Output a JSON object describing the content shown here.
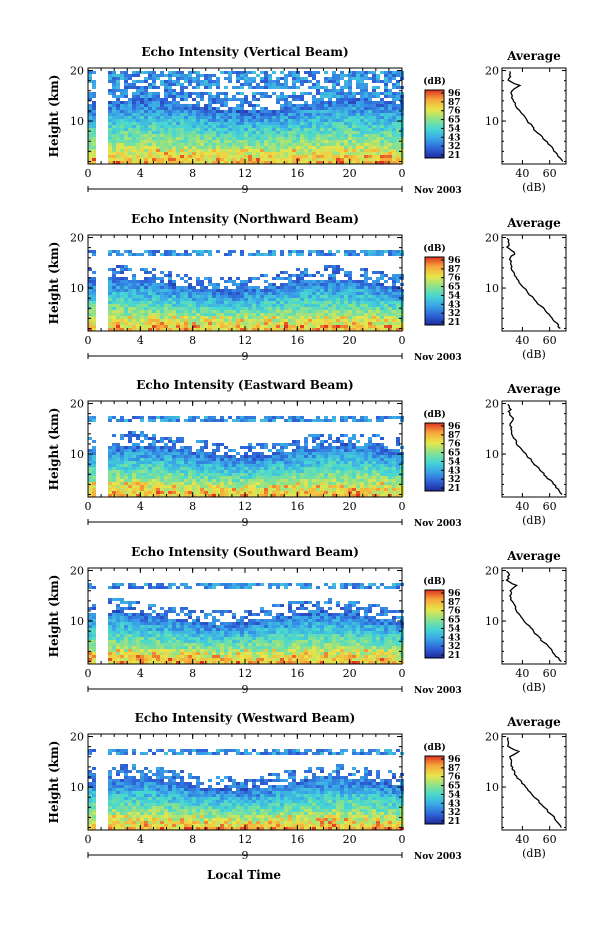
{
  "colorbar": {
    "unit": "(dB)",
    "tick_labels": [
      "96",
      "87",
      "76",
      "65",
      "54",
      "43",
      "32",
      "21"
    ],
    "colors": [
      "#1e2a9a",
      "#2f63d8",
      "#3aa8e8",
      "#48d8d0",
      "#8ee28a",
      "#e8e64a",
      "#f6a63a",
      "#e03222"
    ]
  },
  "xlabel": "Local Time",
  "date_label": "Nov 2003",
  "day_label": "9",
  "avg_title": "Average",
  "avg_xlabel": "(dB)",
  "avg_xticks": [
    "40",
    "60"
  ],
  "chart_data": [
    {
      "type": "heatmap",
      "title": "Echo Intensity (Vertical Beam)",
      "ylabel": "Height (km)",
      "x_ticks": [
        "0",
        "4",
        "8",
        "12",
        "16",
        "20",
        "0"
      ],
      "y_ticks": [
        "20",
        "10"
      ],
      "ylim": [
        1.5,
        20.5
      ],
      "avg_profile": {
        "xlabel": "(dB)",
        "xticks": [
          "40",
          "60"
        ],
        "yticks": [
          "20",
          "10"
        ],
        "height_km": [
          2,
          4,
          6,
          8,
          10,
          12,
          14,
          16,
          17,
          18,
          19,
          20
        ],
        "db": [
          70,
          64,
          57,
          50,
          44,
          38,
          33,
          32,
          38,
          29,
          31,
          30
        ]
      }
    },
    {
      "type": "heatmap",
      "title": "Echo Intensity (Northward Beam)",
      "ylabel": "Height (km)",
      "x_ticks": [
        "0",
        "4",
        "8",
        "12",
        "16",
        "20",
        "0"
      ],
      "y_ticks": [
        "20",
        "10"
      ],
      "ylim": [
        1.5,
        20.5
      ],
      "avg_profile": {
        "xlabel": "(dB)",
        "xticks": [
          "40",
          "60"
        ],
        "yticks": [
          "20",
          "10"
        ],
        "height_km": [
          2,
          4,
          6,
          8,
          10,
          12,
          14,
          16,
          17,
          18,
          19,
          20
        ],
        "db": [
          68,
          62,
          55,
          48,
          41,
          36,
          32,
          31,
          35,
          29,
          30,
          29
        ]
      }
    },
    {
      "type": "heatmap",
      "title": "Echo Intensity (Eastward Beam)",
      "ylabel": "Height (km)",
      "x_ticks": [
        "0",
        "4",
        "8",
        "12",
        "16",
        "20",
        "0"
      ],
      "y_ticks": [
        "20",
        "10"
      ],
      "ylim": [
        1.5,
        20.5
      ],
      "avg_profile": {
        "xlabel": "(dB)",
        "xticks": [
          "40",
          "60"
        ],
        "yticks": [
          "20",
          "10"
        ],
        "height_km": [
          2,
          4,
          6,
          8,
          10,
          12,
          14,
          16,
          17,
          18,
          19,
          20
        ],
        "db": [
          69,
          63,
          56,
          49,
          42,
          36,
          32,
          31,
          34,
          30,
          31,
          29
        ]
      }
    },
    {
      "type": "heatmap",
      "title": "Echo Intensity (Southward Beam)",
      "ylabel": "Height (km)",
      "x_ticks": [
        "0",
        "4",
        "8",
        "12",
        "16",
        "20",
        "0"
      ],
      "y_ticks": [
        "20",
        "10"
      ],
      "ylim": [
        1.5,
        20.5
      ],
      "avg_profile": {
        "xlabel": "(dB)",
        "xticks": [
          "40",
          "60"
        ],
        "yticks": [
          "20",
          "10"
        ],
        "height_km": [
          2,
          4,
          6,
          8,
          10,
          12,
          14,
          16,
          17,
          18,
          19,
          20
        ],
        "db": [
          68,
          62,
          55,
          48,
          41,
          36,
          32,
          31,
          36,
          29,
          30,
          29
        ]
      }
    },
    {
      "type": "heatmap",
      "title": "Echo Intensity (Westward Beam)",
      "ylabel": "Height (km)",
      "x_ticks": [
        "0",
        "4",
        "8",
        "12",
        "16",
        "20",
        "0"
      ],
      "y_ticks": [
        "20",
        "10"
      ],
      "ylim": [
        1.5,
        20.5
      ],
      "avg_profile": {
        "xlabel": "(dB)",
        "xticks": [
          "40",
          "60"
        ],
        "yticks": [
          "20",
          "10"
        ],
        "height_km": [
          2,
          4,
          6,
          8,
          10,
          12,
          14,
          16,
          17,
          18,
          19,
          20
        ],
        "db": [
          69,
          63,
          56,
          49,
          42,
          36,
          32,
          31,
          37,
          29,
          30,
          29
        ]
      }
    }
  ]
}
